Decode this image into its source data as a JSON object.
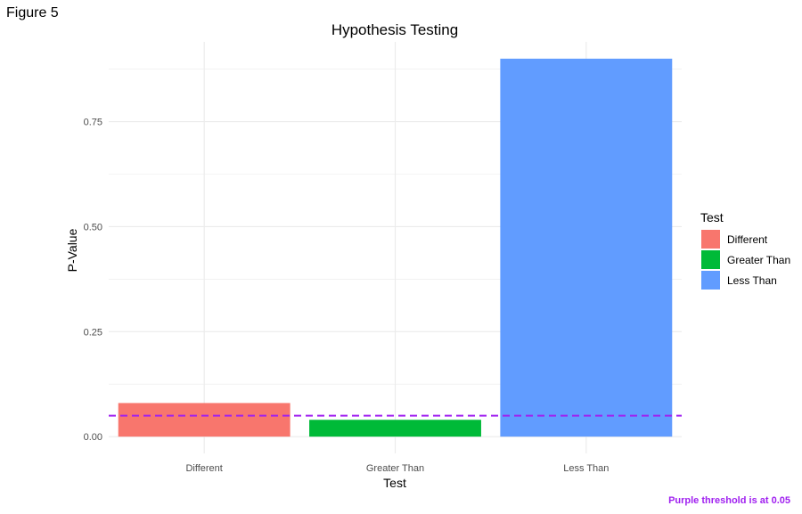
{
  "figure_label": "Figure 5",
  "caption": "Purple threshold is at 0.05",
  "colors": {
    "threshold": "#A020F0",
    "caption": "#A020F0",
    "grid": "#ebebeb"
  },
  "chart_data": {
    "type": "bar",
    "title": "Hypothesis Testing",
    "xlabel": "Test",
    "ylabel": "P-Value",
    "categories": [
      "Different",
      "Greater Than",
      "Less Than"
    ],
    "values": [
      0.08,
      0.04,
      0.9
    ],
    "colors": [
      "#F8766D",
      "#00BA38",
      "#619CFF"
    ],
    "ylim": [
      -0.04,
      0.94
    ],
    "yticks": [
      0.0,
      0.25,
      0.5,
      0.75
    ],
    "ytick_labels": [
      "0.00",
      "0.25",
      "0.50",
      "0.75"
    ],
    "threshold": 0.05,
    "grid": true,
    "legend": {
      "title": "Test",
      "placement": "right",
      "entries": [
        "Different",
        "Greater Than",
        "Less Than"
      ]
    }
  }
}
